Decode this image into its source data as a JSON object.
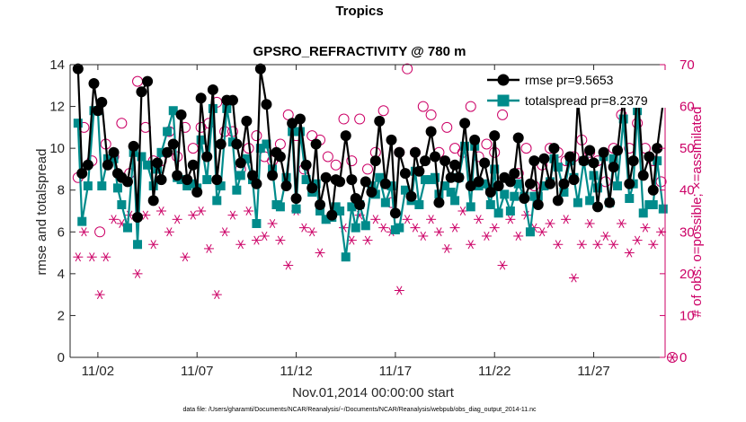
{
  "chart_data": {
    "type": "line",
    "title": "Tropics",
    "subtitle": "GPSRO_REFRACTIVITY @ 780 m",
    "xlabel": "Nov.01,2014 00:00:00 start",
    "ylabel": "rmse and totalspread",
    "ylabel_right": "# of obs: o=possible; ×=assimilated",
    "footnote": "data file: /Users/gharamti/Documents/NCAR/Reanalysis/~/Documents/NCAR/Reanalysis/webpub/obs_diag_output_2014-11.nc",
    "xlim": [
      0.6,
      30.6
    ],
    "ylim": [
      0,
      14
    ],
    "ylim_right": [
      0,
      70
    ],
    "x_tick_values": [
      2,
      7,
      12,
      17,
      22,
      27
    ],
    "x_tick_labels": [
      "11/02",
      "11/07",
      "11/12",
      "11/17",
      "11/22",
      "11/27"
    ],
    "y_tick_values": [
      0,
      2,
      4,
      6,
      8,
      10,
      12,
      14
    ],
    "y_tick_labels": [
      "0",
      "2",
      "4",
      "6",
      "8",
      "10",
      "12",
      "14"
    ],
    "y_right_tick_values": [
      0,
      10,
      20,
      30,
      40,
      50,
      60,
      70
    ],
    "y_right_tick_labels": [
      "0",
      "10",
      "20",
      "30",
      "40",
      "50",
      "60",
      "70"
    ],
    "legend_position": "top-right",
    "colors": {
      "rmse": "#000000",
      "totalspread": "#008b8b",
      "obs": "#cc0066",
      "axis": "#262626"
    },
    "series": [
      {
        "name": "rmse",
        "legend_label": "rmse pr=9.5653",
        "x": [
          1.0,
          1.2,
          1.5,
          1.8,
          2.0,
          2.2,
          2.5,
          2.8,
          3.0,
          3.2,
          3.5,
          3.8,
          4.0,
          4.2,
          4.5,
          4.8,
          5.0,
          5.2,
          5.5,
          5.8,
          6.0,
          6.2,
          6.5,
          6.8,
          7.0,
          7.2,
          7.5,
          7.8,
          8.0,
          8.2,
          8.5,
          8.8,
          9.0,
          9.2,
          9.5,
          9.8,
          10.0,
          10.2,
          10.5,
          10.8,
          11.0,
          11.2,
          11.5,
          11.8,
          12.0,
          12.2,
          12.5,
          12.8,
          13.0,
          13.2,
          13.5,
          13.8,
          14.0,
          14.2,
          14.5,
          14.8,
          15.0,
          15.2,
          15.5,
          15.8,
          16.0,
          16.2,
          16.5,
          16.8,
          17.0,
          17.2,
          17.5,
          17.8,
          18.0,
          18.2,
          18.5,
          18.8,
          19.0,
          19.2,
          19.5,
          19.8,
          20.0,
          20.2,
          20.5,
          20.8,
          21.0,
          21.2,
          21.5,
          21.8,
          22.0,
          22.2,
          22.5,
          22.8,
          23.0,
          23.2,
          23.5,
          23.8,
          24.0,
          24.2,
          24.5,
          24.8,
          25.0,
          25.2,
          25.5,
          25.8,
          26.0,
          26.2,
          26.5,
          26.8,
          27.0,
          27.2,
          27.5,
          27.8,
          28.0,
          28.2,
          28.5,
          28.8,
          29.0,
          29.2,
          29.5,
          29.8,
          30.0,
          30.2,
          30.5
        ],
        "values": [
          13.8,
          8.8,
          9.2,
          13.1,
          11.8,
          12.2,
          9.2,
          9.8,
          8.8,
          8.6,
          8.4,
          10.1,
          6.7,
          12.7,
          13.2,
          7.5,
          9.3,
          8.5,
          9.8,
          10.2,
          8.7,
          11.6,
          8.5,
          9.2,
          7.9,
          12.4,
          9.6,
          12.8,
          8.5,
          10.2,
          12.3,
          12.3,
          10.2,
          9.3,
          11.3,
          8.7,
          8.3,
          13.8,
          12.1,
          8.7,
          9.8,
          9.6,
          8.2,
          11.2,
          7.6,
          11.4,
          9.2,
          8.1,
          10.2,
          7.3,
          8.6,
          6.8,
          8.5,
          8.4,
          10.6,
          8.5,
          7.6,
          7.3,
          8.4,
          7.9,
          9.4,
          11.3,
          8.3,
          10.4,
          6.9,
          9.8,
          8.8,
          7.7,
          9.8,
          8.9,
          9.4,
          10.8,
          9.6,
          7.4,
          9.4,
          8.6,
          9.2,
          8.6,
          11.2,
          8.2,
          10.4,
          8.4,
          9.3,
          7.9,
          10.6,
          8.2,
          8.6,
          8.4,
          8.8,
          10.5,
          7.6,
          8.3,
          9.4,
          7.3,
          9.5,
          8.3,
          10.0,
          7.5,
          8.3,
          9.6,
          8.5,
          12.3,
          9.4,
          9.9,
          9.3,
          7.2,
          9.8,
          7.4,
          9.1,
          9.9,
          12.5,
          8.3,
          9.4,
          13.0,
          8.7,
          9.6,
          8.0,
          10.0,
          12.2
        ]
      },
      {
        "name": "totalspread",
        "legend_label": "totalspread pr=8.2379",
        "x": [
          1.0,
          1.2,
          1.5,
          1.8,
          2.0,
          2.2,
          2.5,
          2.8,
          3.0,
          3.2,
          3.5,
          3.8,
          4.0,
          4.2,
          4.5,
          4.8,
          5.0,
          5.2,
          5.5,
          5.8,
          6.0,
          6.2,
          6.5,
          6.8,
          7.0,
          7.2,
          7.5,
          7.8,
          8.0,
          8.2,
          8.5,
          8.8,
          9.0,
          9.2,
          9.5,
          9.8,
          10.0,
          10.2,
          10.5,
          10.8,
          11.0,
          11.2,
          11.5,
          11.8,
          12.0,
          12.2,
          12.5,
          12.8,
          13.0,
          13.2,
          13.5,
          13.8,
          14.0,
          14.2,
          14.5,
          14.8,
          15.0,
          15.2,
          15.5,
          15.8,
          16.0,
          16.2,
          16.5,
          16.8,
          17.0,
          17.2,
          17.5,
          17.8,
          18.0,
          18.2,
          18.5,
          18.8,
          19.0,
          19.2,
          19.5,
          19.8,
          20.0,
          20.2,
          20.5,
          20.8,
          21.0,
          21.2,
          21.5,
          21.8,
          22.0,
          22.2,
          22.5,
          22.8,
          23.0,
          23.2,
          23.5,
          23.8,
          24.0,
          24.2,
          24.5,
          24.8,
          25.0,
          25.2,
          25.5,
          25.8,
          26.0,
          26.2,
          26.5,
          26.8,
          27.0,
          27.2,
          27.5,
          27.8,
          28.0,
          28.2,
          28.5,
          28.8,
          29.0,
          29.2,
          29.5,
          29.8,
          30.0,
          30.2,
          30.5
        ],
        "values": [
          11.2,
          6.5,
          8.2,
          11.8,
          11.8,
          8.2,
          9.5,
          9.5,
          8.1,
          7.3,
          6.2,
          9.8,
          5.4,
          9.6,
          9.2,
          8.2,
          9.0,
          9.8,
          10.8,
          11.8,
          8.6,
          8.5,
          8.2,
          8.3,
          8.1,
          10.4,
          8.5,
          11.9,
          7.5,
          8.2,
          11.9,
          10.3,
          8.0,
          8.7,
          9.5,
          8.5,
          6.4,
          10.0,
          10.2,
          9.0,
          7.3,
          7.2,
          8.6,
          10.8,
          7.1,
          10.8,
          8.5,
          7.9,
          8.3,
          7.0,
          6.6,
          6.7,
          7.2,
          7.0,
          4.8,
          7.2,
          6.2,
          7.3,
          6.3,
          8.2,
          7.8,
          8.6,
          7.4,
          8.2,
          6.1,
          6.2,
          8.0,
          7.5,
          8.9,
          7.3,
          8.5,
          8.5,
          8.6,
          7.8,
          8.2,
          7.9,
          7.5,
          8.6,
          10.1,
          7.2,
          10.1,
          8.2,
          8.3,
          7.3,
          9.0,
          6.9,
          7.8,
          7.0,
          7.7,
          8.3,
          7.7,
          6.0,
          7.7,
          7.7,
          8.2,
          8.4,
          9.5,
          9.1,
          7.9,
          9.4,
          8.6,
          7.4,
          9.4,
          7.5,
          8.7,
          8.1,
          9.6,
          7.4,
          9.5,
          8.2,
          11.4,
          7.6,
          8.3,
          11.8,
          6.9,
          7.3,
          7.3,
          9.4,
          7.1
        ]
      },
      {
        "name": "obs_possible",
        "legend_label": "",
        "marker": "circle",
        "axis": "right",
        "x": [
          1.0,
          1.3,
          1.7,
          2.1,
          2.4,
          2.8,
          3.2,
          3.6,
          4.0,
          4.4,
          4.8,
          5.2,
          5.6,
          6.0,
          6.4,
          6.8,
          7.2,
          7.6,
          8.0,
          8.4,
          8.8,
          9.2,
          9.6,
          10.0,
          10.4,
          10.8,
          11.2,
          11.6,
          12.0,
          12.4,
          12.8,
          13.2,
          13.6,
          14.0,
          14.4,
          14.8,
          15.2,
          15.6,
          16.0,
          16.4,
          16.8,
          17.2,
          17.6,
          18.0,
          18.4,
          18.8,
          19.2,
          19.6,
          20.0,
          20.4,
          20.8,
          21.2,
          21.6,
          22.0,
          22.4,
          22.8,
          23.2,
          23.6,
          24.0,
          24.4,
          24.8,
          25.2,
          25.6,
          26.0,
          26.4,
          26.8,
          27.2,
          27.6,
          28.0,
          28.4,
          28.8,
          29.2,
          29.6,
          30.0,
          30.4
        ],
        "values": [
          43,
          55,
          47,
          30,
          51,
          48,
          56,
          44,
          66,
          55,
          47,
          47,
          54,
          48,
          55,
          50,
          55,
          56,
          61,
          54,
          54,
          45,
          50,
          53,
          48,
          47,
          51,
          58,
          53,
          45,
          53,
          52,
          48,
          46,
          57,
          47,
          57,
          45,
          49,
          59,
          37,
          49,
          69,
          49,
          60,
          58,
          49,
          55,
          50,
          49,
          60,
          48,
          51,
          49,
          58,
          66,
          44,
          50,
          41,
          46,
          50,
          49,
          47,
          48,
          52,
          49,
          47,
          42,
          50,
          58,
          50,
          56,
          50,
          47,
          42
        ]
      },
      {
        "name": "obs_assimilated",
        "legend_label": "",
        "marker": "asterisk",
        "axis": "right",
        "x": [
          1.0,
          1.3,
          1.7,
          2.1,
          2.4,
          2.8,
          3.2,
          3.6,
          4.0,
          4.4,
          4.8,
          5.2,
          5.6,
          6.0,
          6.4,
          6.8,
          7.2,
          7.6,
          8.0,
          8.4,
          8.8,
          9.2,
          9.6,
          10.0,
          10.4,
          10.8,
          11.2,
          11.6,
          12.0,
          12.4,
          12.8,
          13.2,
          13.6,
          14.0,
          14.4,
          14.8,
          15.2,
          15.6,
          16.0,
          16.4,
          16.8,
          17.2,
          17.6,
          18.0,
          18.4,
          18.8,
          19.2,
          19.6,
          20.0,
          20.4,
          20.8,
          21.2,
          21.6,
          22.0,
          22.4,
          22.8,
          23.2,
          23.6,
          24.0,
          24.4,
          24.8,
          25.2,
          25.6,
          26.0,
          26.4,
          26.8,
          27.2,
          27.6,
          28.0,
          28.4,
          28.8,
          29.2,
          29.6,
          30.0,
          30.4
        ],
        "values": [
          24,
          30,
          24,
          15,
          24,
          33,
          32,
          34,
          20,
          34,
          27,
          35,
          30,
          33,
          24,
          34,
          35,
          26,
          15,
          30,
          34,
          27,
          35,
          28,
          29,
          32,
          28,
          22,
          35,
          31,
          30,
          25,
          33,
          35,
          31,
          28,
          34,
          28,
          33,
          31,
          30,
          16,
          33,
          31,
          29,
          33,
          30,
          26,
          31,
          35,
          27,
          33,
          29,
          31,
          22,
          33,
          29,
          34,
          31,
          30,
          32,
          27,
          33,
          19,
          27,
          32,
          27,
          29,
          27,
          32,
          25,
          28,
          31,
          27,
          30
        ]
      }
    ],
    "right_axis_endpoint_markers": [
      0
    ]
  }
}
